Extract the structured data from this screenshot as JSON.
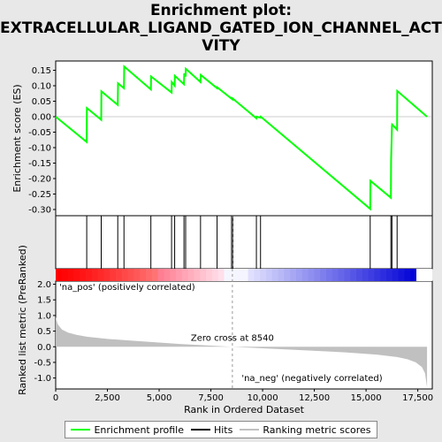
{
  "title_lines": [
    "Enrichment plot:",
    "EXTRACELLULAR_LIGAND_GATED_ION_CHANNEL_ACTI",
    "VITY"
  ],
  "legend": [
    {
      "label": "Enrichment profile",
      "color": "#00ff00"
    },
    {
      "label": "Hits",
      "color": "#000000"
    },
    {
      "label": "Ranking metric scores",
      "color": "#c0c0c0"
    }
  ],
  "chart_data": {
    "type": "line",
    "es_panel": {
      "ylabel": "Enrichment score (ES)",
      "ylim": [
        -0.32,
        0.18
      ],
      "yticks": [
        -0.3,
        -0.25,
        -0.2,
        -0.15,
        -0.1,
        -0.05,
        0.0,
        0.05,
        0.1,
        0.15
      ],
      "ytick_labels": [
        "-0.30",
        "-0.25",
        "-0.20",
        "-0.15",
        "-0.10",
        "-0.05",
        "0.00",
        "0.05",
        "0.10",
        "0.15"
      ],
      "series": [
        {
          "name": "Enrichment profile",
          "color": "#00ff00",
          "x": [
            0,
            1500,
            1510,
            2200,
            2210,
            3000,
            3010,
            3300,
            3310,
            4600,
            4610,
            5600,
            5610,
            5750,
            5760,
            6200,
            6210,
            6280,
            6290,
            7000,
            7010,
            7800,
            7810,
            8500,
            8510,
            8560,
            8570,
            9700,
            9710,
            9900,
            9910,
            15200,
            15210,
            16200,
            16210,
            16250,
            16260,
            16500,
            16510,
            17950
          ],
          "y": [
            0.0,
            -0.082,
            0.028,
            -0.01,
            0.082,
            0.038,
            0.108,
            0.092,
            0.162,
            0.088,
            0.13,
            0.078,
            0.112,
            0.1,
            0.132,
            0.105,
            0.14,
            0.13,
            0.155,
            0.112,
            0.135,
            0.092,
            0.095,
            0.058,
            0.06,
            0.056,
            0.058,
            -0.005,
            0.0,
            -0.003,
            0.0,
            -0.298,
            -0.207,
            -0.262,
            -0.143,
            -0.03,
            -0.025,
            -0.042,
            0.083,
            0.0
          ]
        }
      ]
    },
    "hits": [
      1500,
      2200,
      3000,
      3300,
      4600,
      5600,
      5750,
      6200,
      6280,
      7000,
      7800,
      8500,
      8560,
      9700,
      9900,
      15200,
      16200,
      16250,
      16500
    ],
    "rank_panel": {
      "ylabel": "Ranked list metric (PreRanked)",
      "xlabel": "Rank in Ordered Dataset",
      "ylim": [
        -1.35,
        2.1
      ],
      "yticks": [
        -1.0,
        -0.5,
        0.0,
        0.5,
        1.0,
        1.5,
        2.0
      ],
      "ytick_labels": [
        "-1.0",
        "-0.5",
        "0.0",
        "0.5",
        "1.0",
        "1.5",
        "2.0"
      ],
      "xlim": [
        0,
        18200
      ],
      "xticks": [
        0,
        2500,
        5000,
        7500,
        10000,
        12500,
        15000,
        17500
      ],
      "xtick_labels": [
        "0",
        "2,500",
        "5,000",
        "7,500",
        "10,000",
        "12,500",
        "15,000",
        "17,500"
      ],
      "metric_curve": {
        "x": [
          0,
          100,
          300,
          600,
          1000,
          1500,
          2500,
          4000,
          6000,
          8540,
          10000,
          12000,
          14000,
          15500,
          16500,
          17000,
          17400,
          17700,
          17850,
          17950
        ],
        "y": [
          0.95,
          0.72,
          0.55,
          0.45,
          0.38,
          0.32,
          0.25,
          0.18,
          0.09,
          0.0,
          -0.05,
          -0.11,
          -0.18,
          -0.25,
          -0.33,
          -0.4,
          -0.5,
          -0.65,
          -0.85,
          -1.3
        ]
      },
      "zero_cross_label": "Zero cross at 8540",
      "zero_cross_x": 8540,
      "pos_label": "'na_pos' (positively correlated)",
      "neg_label": "'na_neg' (negatively correlated)"
    },
    "colors": {
      "profile": "#00ff00",
      "pos_strong": "#ff0000",
      "neg_strong": "#0000ff",
      "metric_fill": "#c0c0c0",
      "pos_text": "#cc0000",
      "neg_text": "#0000aa"
    }
  }
}
